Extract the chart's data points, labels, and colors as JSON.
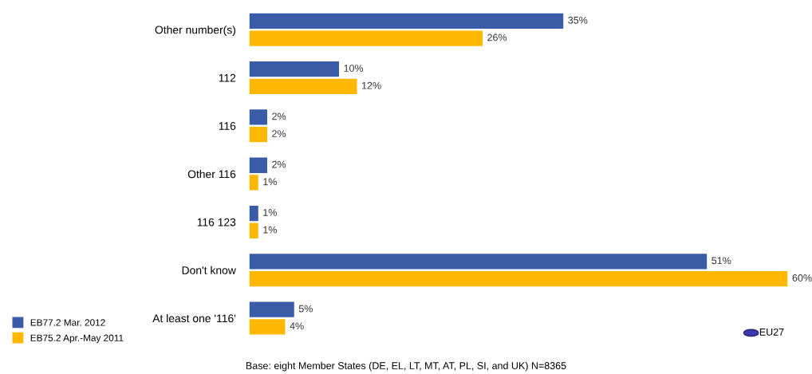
{
  "chart_data": {
    "type": "bar",
    "orientation": "horizontal",
    "legend": "bottom left",
    "categories": [
      "Other number(s)",
      "112",
      "116",
      "Other 116",
      "116 123",
      "Don't know",
      "At least one '116'"
    ],
    "series": [
      {
        "name": "EB77.2 Mar. 2012",
        "color": "#3a5ca8",
        "values": [
          35,
          10,
          2,
          2,
          1,
          51,
          5
        ],
        "value_labels": [
          "35%",
          "10%",
          "2%",
          "2%",
          "1%",
          "51%",
          "5%"
        ]
      },
      {
        "name": "EB75.2 Apr.-May 2011",
        "color": "#ffb700",
        "values": [
          26,
          12,
          2,
          1,
          1,
          60,
          4
        ],
        "value_labels": [
          "26%",
          "12%",
          "2%",
          "1%",
          "1%",
          "60%",
          "4%"
        ]
      }
    ],
    "annotations": [
      "EU27",
      "Base: eight Member States (DE, EL, LT, MT, AT, PL, SI, and UK) N=8365"
    ]
  }
}
